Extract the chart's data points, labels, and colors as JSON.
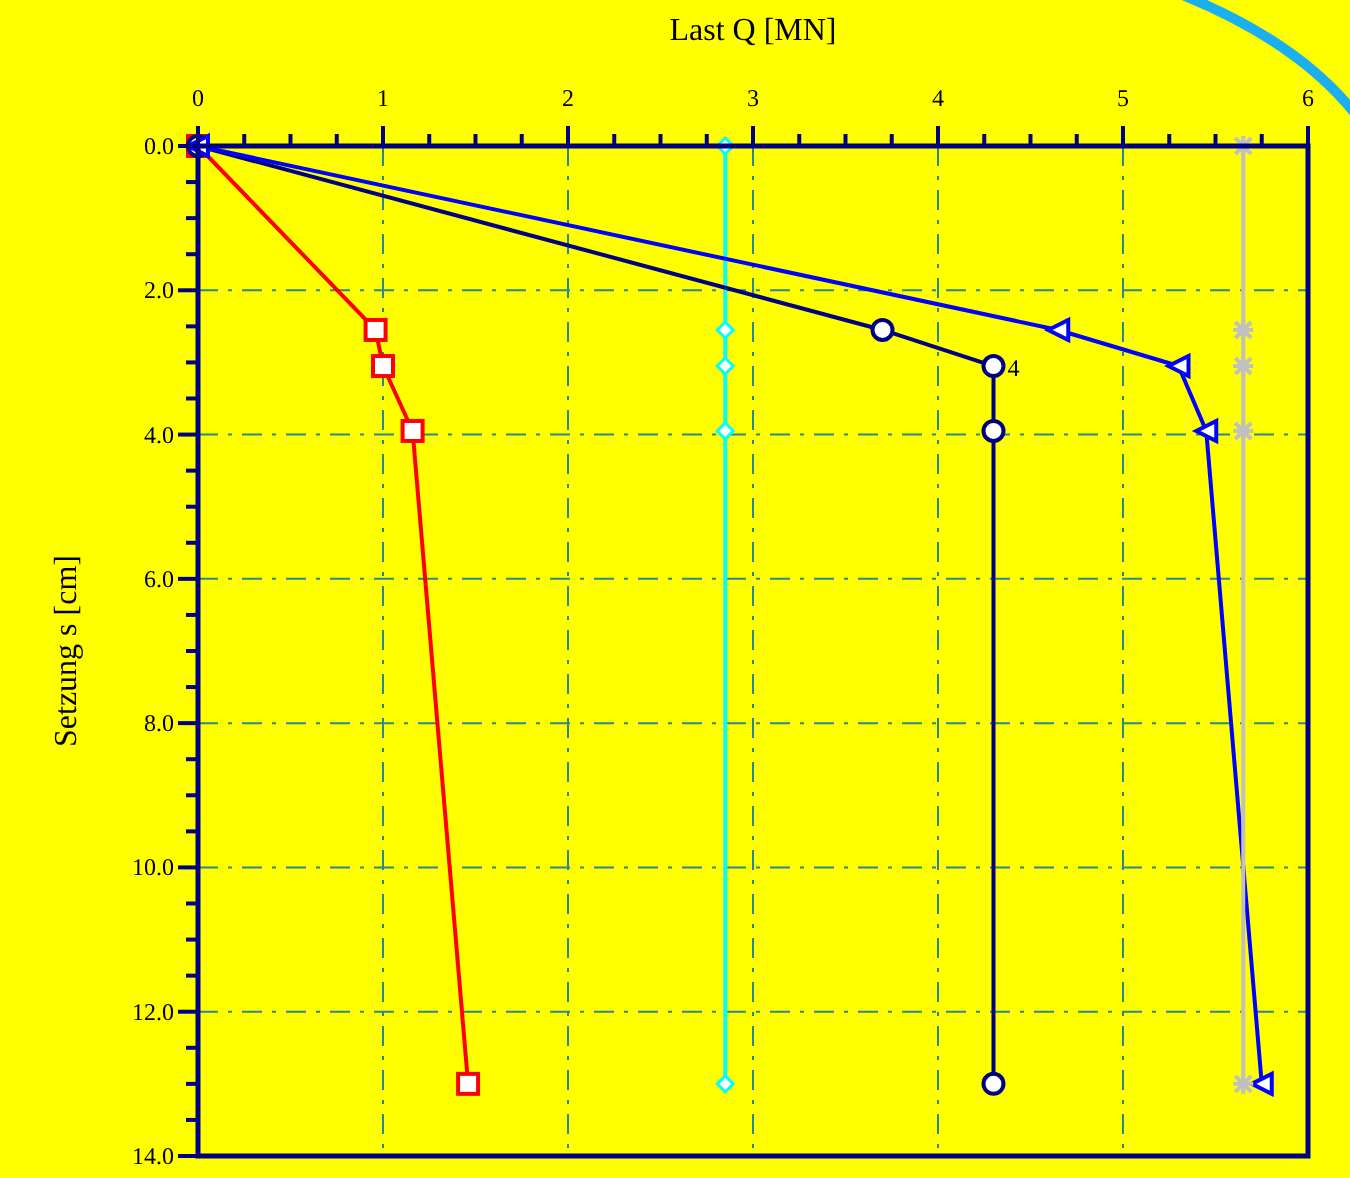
{
  "chart_data": {
    "type": "line",
    "xlabel": "Last Q [MN]",
    "ylabel": "Setzung s [cm]",
    "xlim": [
      0,
      6
    ],
    "ylim": [
      14,
      0
    ],
    "xticks": [
      0,
      {
        "value": 0.25,
        "label": null
      },
      {
        "value": 0.5,
        "label": null
      },
      {
        "value": 0.75,
        "label": null
      },
      1,
      {
        "value": 1.25,
        "label": null
      },
      {
        "value": 1.5,
        "label": null
      },
      {
        "value": 1.75,
        "label": null
      },
      2,
      {
        "value": 2.25,
        "label": null
      },
      {
        "value": 2.5,
        "label": null
      },
      {
        "value": 2.75,
        "label": null
      },
      3,
      {
        "value": 3.25,
        "label": null
      },
      {
        "value": 3.5,
        "label": null
      },
      {
        "value": 3.75,
        "label": null
      },
      4,
      {
        "value": 4.25,
        "label": null
      },
      {
        "value": 4.5,
        "label": null
      },
      {
        "value": 4.75,
        "label": null
      },
      5,
      {
        "value": 5.25,
        "label": null
      },
      {
        "value": 5.5,
        "label": null
      },
      {
        "value": 5.75,
        "label": null
      },
      6
    ],
    "yticks": [
      {
        "value": 0,
        "label": "0.0"
      },
      {
        "value": 0.5,
        "label": null
      },
      {
        "value": 1,
        "label": null
      },
      {
        "value": 1.5,
        "label": null
      },
      {
        "value": 2,
        "label": "2.0"
      },
      {
        "value": 2.5,
        "label": null
      },
      {
        "value": 3,
        "label": null
      },
      {
        "value": 3.5,
        "label": null
      },
      {
        "value": 4,
        "label": "4.0"
      },
      {
        "value": 4.5,
        "label": null
      },
      {
        "value": 5,
        "label": null
      },
      {
        "value": 5.5,
        "label": null
      },
      {
        "value": 6,
        "label": "6.0"
      },
      {
        "value": 6.5,
        "label": null
      },
      {
        "value": 7,
        "label": null
      },
      {
        "value": 7.5,
        "label": null
      },
      {
        "value": 8,
        "label": "8.0"
      },
      {
        "value": 8.5,
        "label": null
      },
      {
        "value": 9,
        "label": null
      },
      {
        "value": 9.5,
        "label": null
      },
      {
        "value": 10,
        "label": "10.0"
      },
      {
        "value": 10.5,
        "label": null
      },
      {
        "value": 11,
        "label": null
      },
      {
        "value": 11.5,
        "label": null
      },
      {
        "value": 12,
        "label": "12.0"
      },
      {
        "value": 12.5,
        "label": null
      },
      {
        "value": 13,
        "label": null
      },
      {
        "value": 13.5,
        "label": null
      },
      {
        "value": 14,
        "label": "14.0"
      }
    ],
    "grid": true,
    "line_style": "solid",
    "series": [
      {
        "color": "#ff0000",
        "marker": "square",
        "x": [
          0,
          0.96,
          1.0,
          1.16,
          1.46
        ],
        "values": [
          0,
          2.55,
          3.05,
          3.95,
          13.0
        ]
      },
      {
        "color": "#00ffff",
        "marker": "diamond",
        "x": [
          2.85,
          2.85,
          2.85,
          2.85,
          2.85
        ],
        "values": [
          0,
          2.55,
          3.05,
          3.95,
          13.0
        ]
      },
      {
        "color": "#000080",
        "marker": "circle",
        "x": [
          0,
          3.7,
          4.3,
          4.3,
          4.3
        ],
        "values": [
          0,
          2.55,
          3.05,
          3.95,
          13.0
        ]
      },
      {
        "color": "#0000ff",
        "marker": "triangle",
        "x": [
          0,
          4.65,
          5.3,
          5.45,
          5.75
        ],
        "values": [
          0,
          2.55,
          3.05,
          3.95,
          13.0
        ]
      },
      {
        "color": "#c0c0c0",
        "marker": "cross",
        "x": [
          5.65,
          5.65,
          5.65,
          5.65,
          5.65
        ],
        "values": [
          0,
          2.55,
          3.05,
          3.95,
          13.0
        ]
      }
    ],
    "annotations": [
      {
        "text": "4",
        "x": 4.3,
        "y": 3.05
      }
    ]
  }
}
